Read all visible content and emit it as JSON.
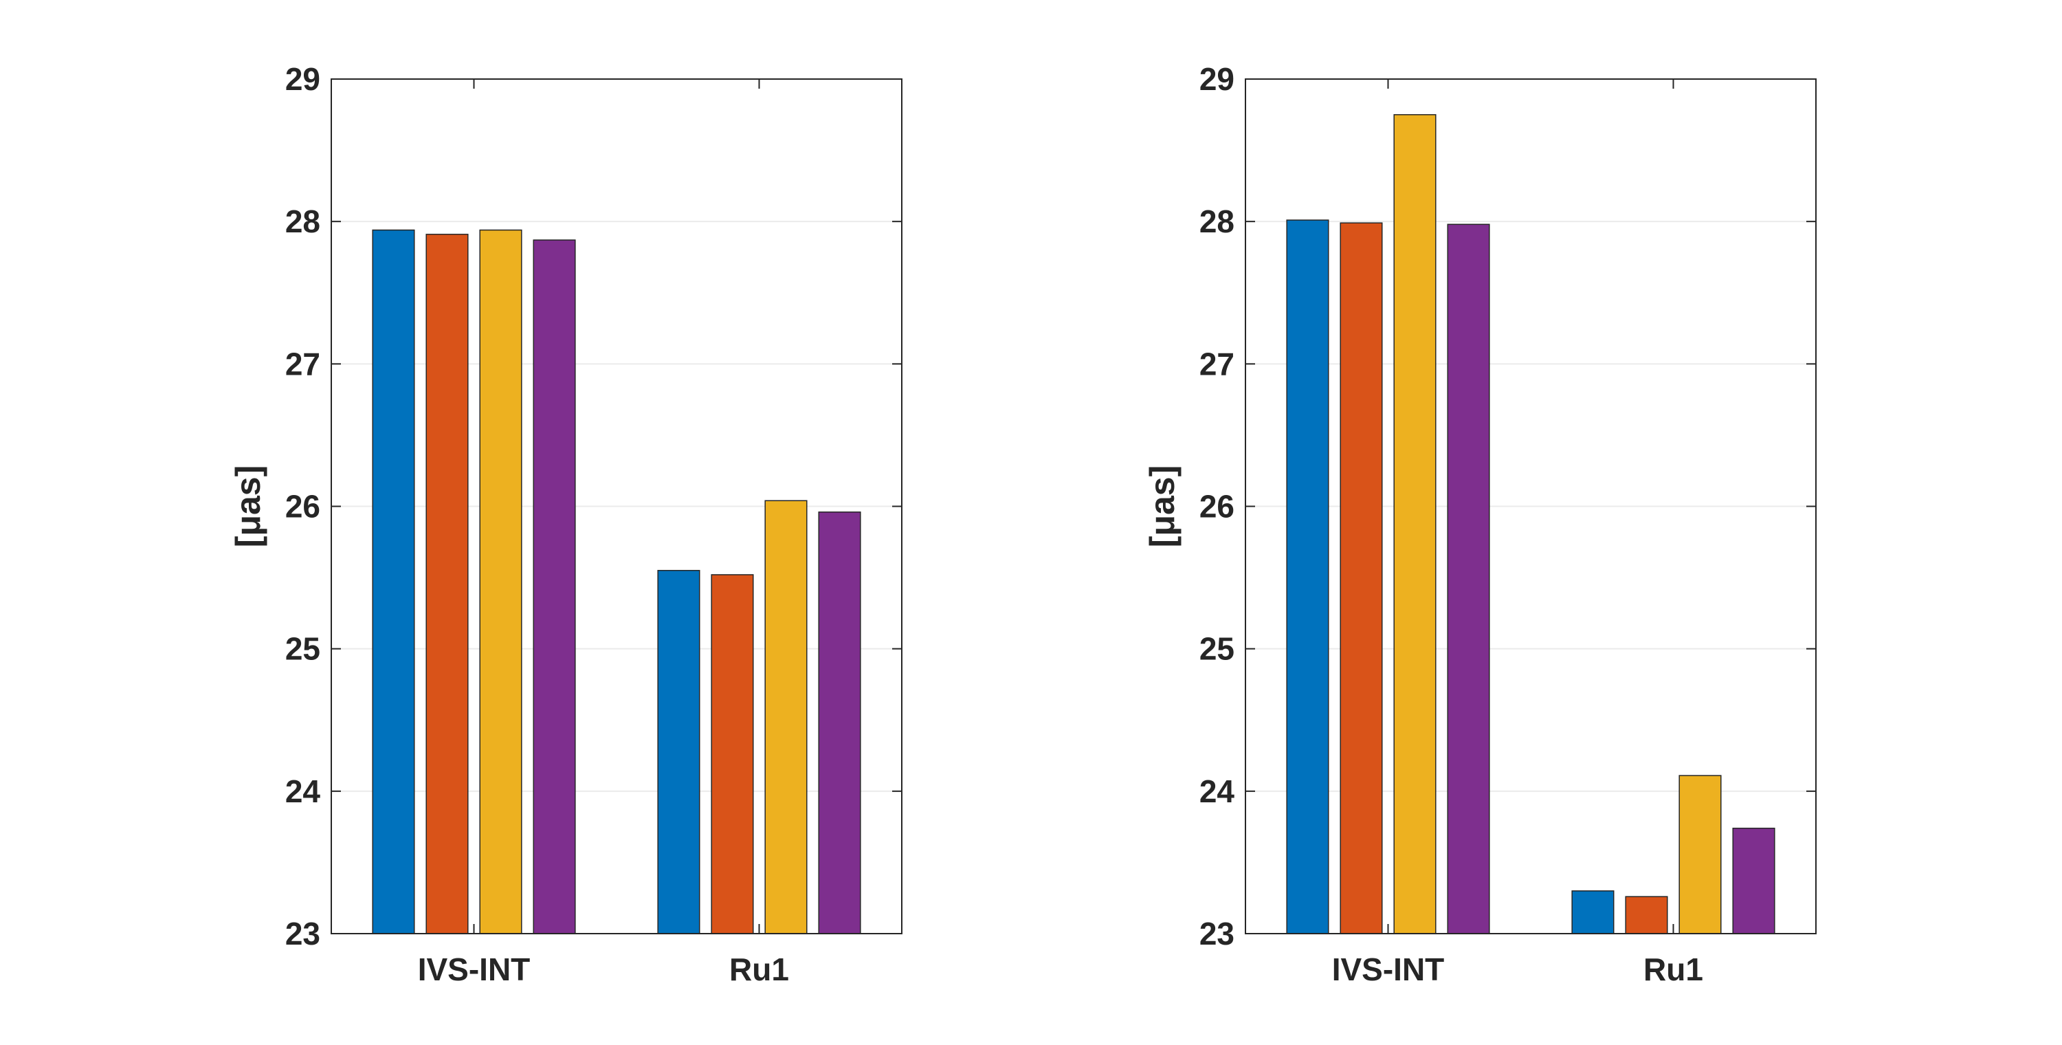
{
  "chart_data": [
    {
      "type": "bar",
      "categories": [
        "IVS-INT",
        "Ru1"
      ],
      "series": [
        {
          "color": "#0072BD",
          "values": [
            27.94,
            25.55
          ]
        },
        {
          "color": "#D95319",
          "values": [
            27.91,
            25.52
          ]
        },
        {
          "color": "#EDB120",
          "values": [
            27.94,
            26.04
          ]
        },
        {
          "color": "#7E2F8E",
          "values": [
            27.87,
            25.96
          ]
        }
      ],
      "ylabel": "[μas]",
      "ylim": [
        23,
        29
      ],
      "yticks": [
        "23",
        "24",
        "25",
        "26",
        "27",
        "28",
        "29"
      ],
      "grid": true,
      "legend": "none"
    },
    {
      "type": "bar",
      "categories": [
        "IVS-INT",
        "Ru1"
      ],
      "series": [
        {
          "color": "#0072BD",
          "values": [
            28.01,
            23.3
          ]
        },
        {
          "color": "#D95319",
          "values": [
            27.99,
            23.26
          ]
        },
        {
          "color": "#EDB120",
          "values": [
            28.75,
            24.11
          ]
        },
        {
          "color": "#7E2F8E",
          "values": [
            27.98,
            23.74
          ]
        }
      ],
      "ylabel": "[μas]",
      "ylim": [
        23,
        29
      ],
      "yticks": [
        "23",
        "24",
        "25",
        "26",
        "27",
        "28",
        "29"
      ],
      "grid": true,
      "legend": "none"
    }
  ]
}
